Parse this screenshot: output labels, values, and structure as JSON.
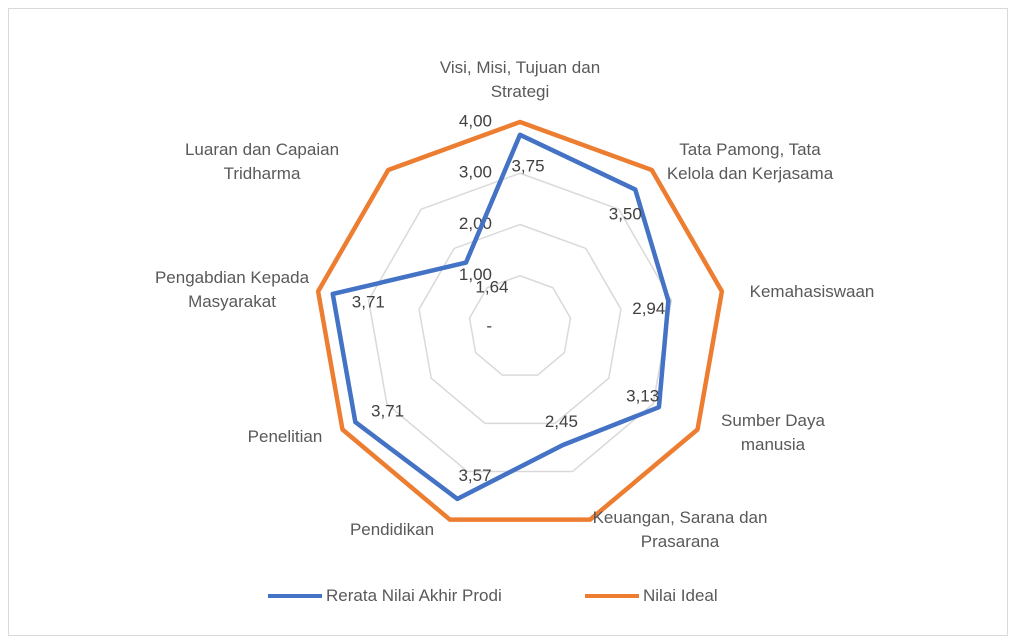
{
  "chart_data": {
    "type": "radar",
    "categories": [
      "Visi, Misi, Tujuan dan Strategi",
      "Tata Pamong, Tata Kelola dan Kerjasama",
      "Kemahasiswaan",
      "Sumber Daya manusia",
      "Keuangan, Sarana dan Prasarana",
      "Pendidikan",
      "Penelitian",
      "Pengabdian Kepada Masyarakat",
      "Luaran dan Capaian Tridharma"
    ],
    "series": [
      {
        "name": "Rerata Nilai Akhir Prodi",
        "color": "#4472c4",
        "values": [
          3.75,
          3.5,
          2.94,
          3.13,
          2.45,
          3.57,
          3.71,
          3.71,
          1.64
        ],
        "value_labels": [
          "3,75",
          "3,50",
          "2,94",
          "3,13",
          "2,45",
          "3,57",
          "3,71",
          "3,71",
          "1,64"
        ]
      },
      {
        "name": "Nilai Ideal",
        "color": "#ed7d31",
        "values": [
          4,
          4,
          4,
          4,
          4,
          4,
          4,
          4,
          4
        ]
      }
    ],
    "rlim": [
      0,
      4
    ],
    "rticks": [
      {
        "value": 0,
        "label": "-"
      },
      {
        "value": 1,
        "label": "1,00"
      },
      {
        "value": 2,
        "label": "2,00"
      },
      {
        "value": 3,
        "label": "3,00"
      },
      {
        "value": 4,
        "label": "4,00"
      }
    ],
    "grid": true,
    "legend": "bottom"
  }
}
